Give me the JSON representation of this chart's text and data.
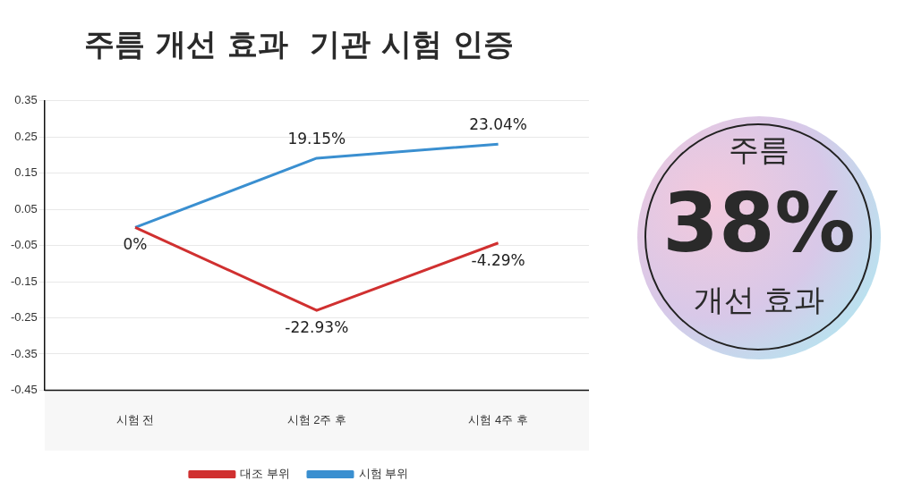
{
  "chart_data": {
    "type": "line",
    "title": "주름 개선 효과  기관 시험 인증",
    "categories": [
      "시험 전",
      "시험 2주 후",
      "시험 4주 후"
    ],
    "series": [
      {
        "name": "대조 부위",
        "color": "#d03030",
        "values": [
          0,
          -0.2293,
          -0.0429
        ],
        "value_labels": [
          null,
          "-22.93%",
          "-4.29%"
        ]
      },
      {
        "name": "시험 부위",
        "color": "#3a8fd0",
        "values": [
          0,
          0.1915,
          0.2304
        ],
        "value_labels": [
          "0%",
          "19.15%",
          "23.04%"
        ]
      }
    ],
    "ylim": [
      -0.45,
      0.35
    ],
    "yticks": [
      -0.45,
      -0.35,
      -0.25,
      -0.15,
      -0.05,
      0.05,
      0.15,
      0.25,
      0.35
    ],
    "grid": "y",
    "legend": "bottom",
    "marker": "none",
    "line_style": "solid",
    "annotations": [
      "주름",
      "38%",
      "개선 효과"
    ]
  }
}
